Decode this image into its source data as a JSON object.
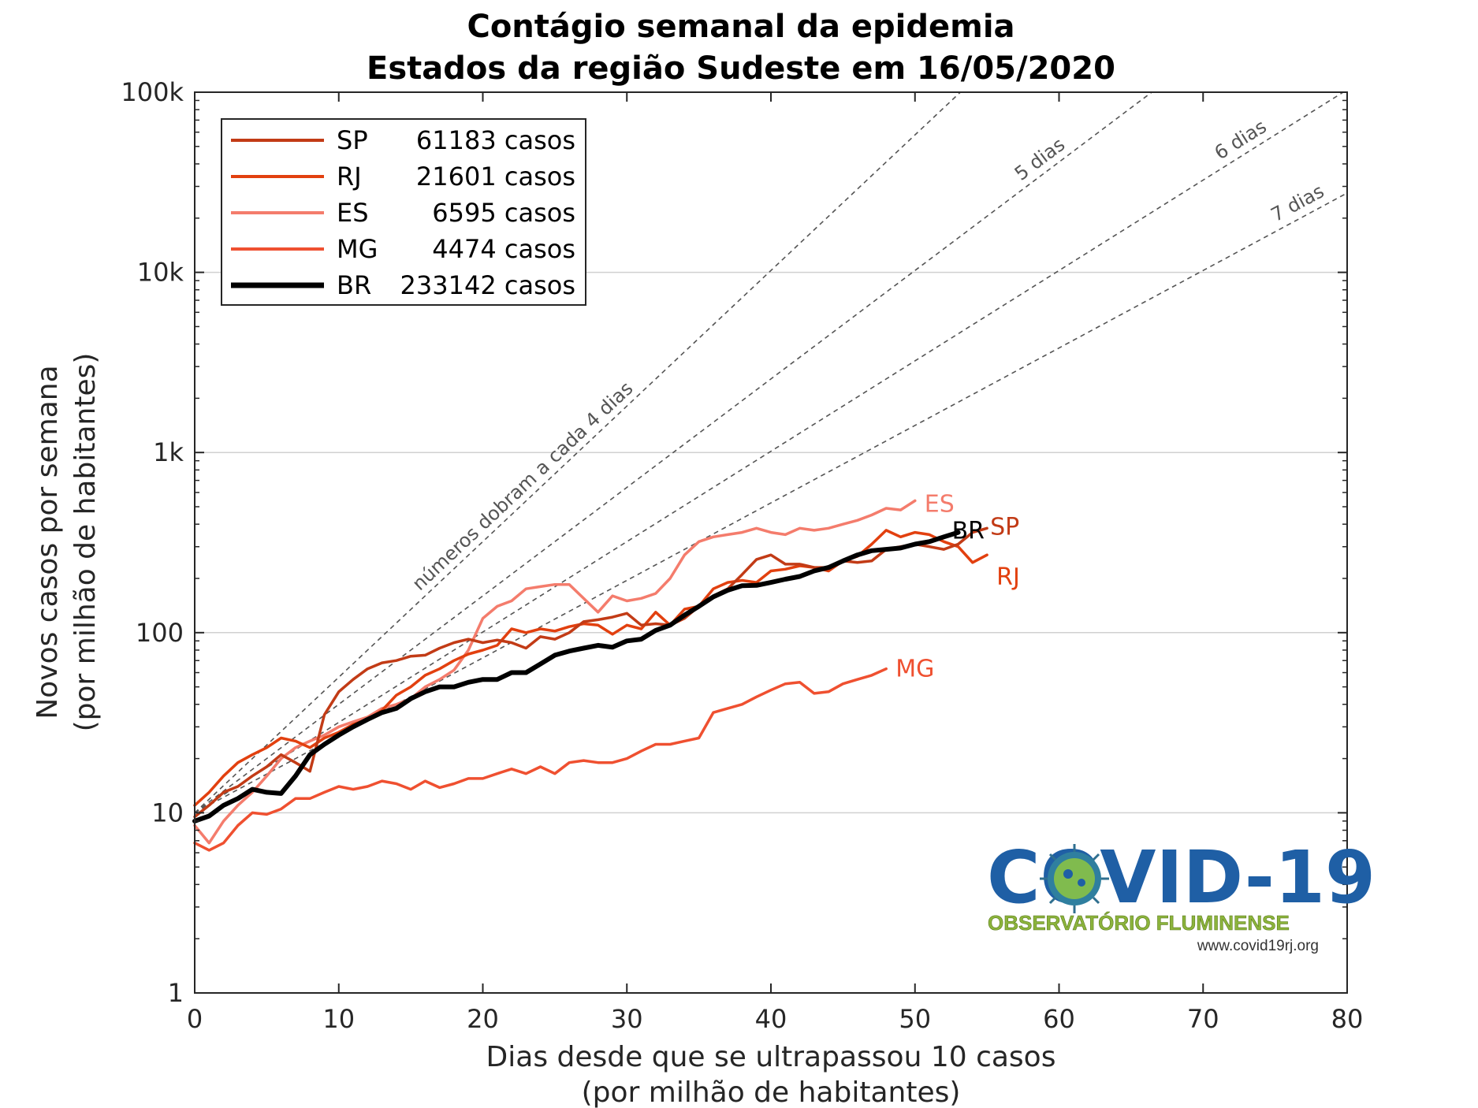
{
  "chart_data": {
    "type": "line",
    "title": [
      "Contágio semanal da epidemia",
      "Estados da região Sudeste em 16/05/2020"
    ],
    "xlabel": [
      "Dias desde que se ultrapassou 10 casos",
      "(por milhão de habitantes)"
    ],
    "ylabel": [
      "Novos casos por semana",
      "(por milhão de habitantes)"
    ],
    "xlim": [
      0,
      80
    ],
    "ylim": [
      1,
      100000
    ],
    "yscale": "log",
    "grid": "horizontal",
    "xticks": [
      0,
      10,
      20,
      30,
      40,
      50,
      60,
      70,
      80
    ],
    "xtick_labels": [
      "0",
      "10",
      "20",
      "30",
      "40",
      "50",
      "60",
      "70",
      "80"
    ],
    "yticks": [
      1,
      10,
      100,
      1000,
      10000,
      100000
    ],
    "ytick_labels": [
      "1",
      "10",
      "100",
      "1k",
      "10k",
      "100k"
    ],
    "legend_position": "top-left",
    "reference_lines": [
      {
        "days": 4,
        "label": "números dobram a cada 4 dias"
      },
      {
        "days": 5,
        "label": "5 dias"
      },
      {
        "days": 6,
        "label": "6 dias"
      },
      {
        "days": 7,
        "label": "7 dias"
      }
    ],
    "series": [
      {
        "name": "SP",
        "cases_label": "61183 casos",
        "color": "#c23b16",
        "x": [
          0,
          1,
          2,
          3,
          4,
          5,
          6,
          7,
          8,
          9,
          10,
          11,
          12,
          13,
          14,
          15,
          16,
          17,
          18,
          19,
          20,
          21,
          22,
          23,
          24,
          25,
          26,
          27,
          28,
          29,
          30,
          31,
          32,
          33,
          34,
          35,
          36,
          37,
          38,
          39,
          40,
          41,
          42,
          43,
          44,
          45,
          46,
          47,
          48,
          49,
          50,
          51,
          52,
          53,
          54,
          55
        ],
        "y": [
          9.5,
          11,
          13,
          14,
          16,
          18,
          21,
          19,
          17,
          35,
          47,
          55,
          63,
          68,
          70,
          74,
          75,
          82,
          88,
          92,
          88,
          91,
          88,
          82,
          95,
          92,
          100,
          115,
          118,
          122,
          128,
          110,
          112,
          110,
          120,
          140,
          160,
          175,
          210,
          255,
          270,
          240,
          240,
          230,
          230,
          250,
          245,
          250,
          290,
          300,
          310,
          300,
          290,
          310,
          360,
          380
        ]
      },
      {
        "name": "RJ",
        "cases_label": "21601 casos",
        "color": "#e2400f",
        "x": [
          0,
          1,
          2,
          3,
          4,
          5,
          6,
          7,
          8,
          9,
          10,
          11,
          12,
          13,
          14,
          15,
          16,
          17,
          18,
          19,
          20,
          21,
          22,
          23,
          24,
          25,
          26,
          27,
          28,
          29,
          30,
          31,
          32,
          33,
          34,
          35,
          36,
          37,
          38,
          39,
          40,
          41,
          42,
          43,
          44,
          45,
          46,
          47,
          48,
          49,
          50,
          51,
          52,
          53,
          54,
          55
        ],
        "y": [
          11,
          13,
          16,
          19,
          21,
          23,
          26,
          25,
          23,
          26,
          28,
          31,
          33,
          37,
          45,
          50,
          58,
          63,
          70,
          76,
          80,
          85,
          105,
          100,
          105,
          102,
          108,
          112,
          110,
          98,
          110,
          105,
          130,
          110,
          135,
          140,
          175,
          190,
          195,
          190,
          220,
          225,
          235,
          230,
          220,
          250,
          265,
          310,
          370,
          340,
          360,
          350,
          320,
          300,
          245,
          270
        ]
      },
      {
        "name": "ES",
        "cases_label": "6595 casos",
        "color": "#f47c6c",
        "x": [
          0,
          1,
          2,
          3,
          4,
          5,
          6,
          7,
          8,
          9,
          10,
          11,
          12,
          13,
          14,
          15,
          16,
          17,
          18,
          19,
          20,
          21,
          22,
          23,
          24,
          25,
          26,
          27,
          28,
          29,
          30,
          31,
          32,
          33,
          34,
          35,
          36,
          37,
          38,
          39,
          40,
          41,
          42,
          43,
          44,
          45,
          46,
          47,
          48,
          49,
          50
        ],
        "y": [
          8.5,
          6.8,
          9,
          11,
          13,
          16,
          20,
          23,
          25,
          27,
          30,
          32,
          34,
          38,
          40,
          43,
          50,
          55,
          62,
          80,
          120,
          140,
          150,
          175,
          180,
          185,
          185,
          155,
          130,
          160,
          150,
          155,
          165,
          200,
          270,
          320,
          340,
          350,
          360,
          380,
          360,
          350,
          380,
          370,
          380,
          400,
          420,
          450,
          490,
          480,
          540
        ]
      },
      {
        "name": "MG",
        "cases_label": "4474 casos",
        "color": "#ef5030",
        "x": [
          0,
          1,
          2,
          3,
          4,
          5,
          6,
          7,
          8,
          9,
          10,
          11,
          12,
          13,
          14,
          15,
          16,
          17,
          18,
          19,
          20,
          21,
          22,
          23,
          24,
          25,
          26,
          27,
          28,
          29,
          30,
          31,
          32,
          33,
          34,
          35,
          36,
          37,
          38,
          39,
          40,
          41,
          42,
          43,
          44,
          45,
          46,
          47,
          48
        ],
        "y": [
          6.8,
          6.2,
          6.8,
          8.5,
          10,
          9.8,
          10.5,
          12,
          12,
          13,
          14,
          13.5,
          14,
          15,
          14.5,
          13.5,
          15,
          13.8,
          14.5,
          15.5,
          15.5,
          16.5,
          17.5,
          16.5,
          18,
          16.5,
          19,
          19.5,
          19,
          19,
          20,
          22,
          24,
          24,
          25,
          26,
          36,
          38,
          40,
          44,
          48,
          52,
          53,
          46,
          47,
          52,
          55,
          58,
          63
        ]
      },
      {
        "name": "BR",
        "cases_label": "233142 casos",
        "color": "#000000",
        "x": [
          0,
          1,
          2,
          3,
          4,
          5,
          6,
          7,
          8,
          9,
          10,
          11,
          12,
          13,
          14,
          15,
          16,
          17,
          18,
          19,
          20,
          21,
          22,
          23,
          24,
          25,
          26,
          27,
          28,
          29,
          30,
          31,
          32,
          33,
          34,
          35,
          36,
          37,
          38,
          39,
          40,
          41,
          42,
          43,
          44,
          45,
          46,
          47,
          48,
          49,
          50,
          51,
          52,
          53
        ],
        "y": [
          9,
          9.6,
          11,
          12,
          13.5,
          13,
          12.8,
          16,
          21,
          24,
          27,
          30,
          33,
          36,
          38,
          43,
          47,
          50,
          50,
          53,
          55,
          55,
          60,
          60,
          67,
          75,
          79,
          82,
          85,
          83,
          90,
          92,
          103,
          110,
          125,
          140,
          158,
          172,
          182,
          183,
          190,
          198,
          205,
          220,
          230,
          250,
          270,
          285,
          290,
          295,
          310,
          320,
          340,
          360
        ]
      }
    ]
  },
  "logo": {
    "title": "COVID-19",
    "subtitle": "OBSERVATÓRIO FLUMINENSE",
    "url": "www.covid19rj.org"
  }
}
